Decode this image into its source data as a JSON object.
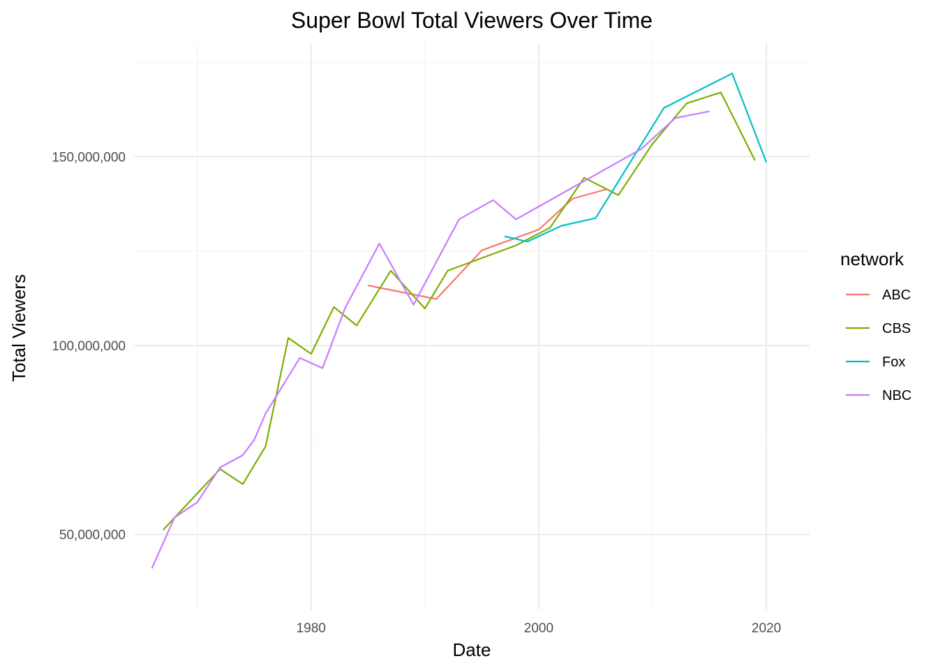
{
  "chart_data": {
    "type": "line",
    "title": "Super Bowl Total Viewers Over Time",
    "xlabel": "Date",
    "ylabel": "Total Viewers",
    "xlim": [
      1964.5,
      2023.8
    ],
    "ylim": [
      30000000,
      180000000
    ],
    "x_ticks": [
      1980,
      2000,
      2020
    ],
    "x_tick_labels": [
      "1980",
      "2000",
      "2020"
    ],
    "x_minor_ticks": [
      1970,
      1990,
      2010
    ],
    "y_ticks": [
      50000000,
      100000000,
      150000000
    ],
    "y_tick_labels": [
      "50,000,000",
      "100,000,000",
      "150,000,000"
    ],
    "y_minor_ticks": [
      75000000,
      125000000,
      175000000
    ],
    "grid": true,
    "legend": {
      "title": "network",
      "position": "right"
    },
    "series": [
      {
        "name": "ABC",
        "color": "#F8766D",
        "points": [
          [
            1985,
            115900000
          ],
          [
            1991,
            112300000
          ],
          [
            1995,
            125200000
          ],
          [
            2000,
            130700000
          ],
          [
            2003,
            138900000
          ],
          [
            2006,
            141400000
          ]
        ]
      },
      {
        "name": "CBS",
        "color": "#7CAE00",
        "points": [
          [
            1967,
            51200000
          ],
          [
            1972,
            67300000
          ],
          [
            1974,
            63300000
          ],
          [
            1976,
            73300000
          ],
          [
            1978,
            102000000
          ],
          [
            1980,
            97800000
          ],
          [
            1982,
            110200000
          ],
          [
            1984,
            105300000
          ],
          [
            1987,
            119800000
          ],
          [
            1990,
            109800000
          ],
          [
            1992,
            119800000
          ],
          [
            1998,
            126500000
          ],
          [
            2001,
            131200000
          ],
          [
            2004,
            144400000
          ],
          [
            2007,
            139800000
          ],
          [
            2010,
            153400000
          ],
          [
            2013,
            164100000
          ],
          [
            2016,
            167000000
          ],
          [
            2019,
            149000000
          ]
        ]
      },
      {
        "name": "Fox",
        "color": "#00BFC4",
        "points": [
          [
            1997,
            128900000
          ],
          [
            1999,
            127500000
          ],
          [
            2002,
            131700000
          ],
          [
            2005,
            133700000
          ],
          [
            2008,
            148300000
          ],
          [
            2011,
            162900000
          ],
          [
            2017,
            172000000
          ],
          [
            2020,
            148500000
          ]
        ]
      },
      {
        "name": "NBC",
        "color": "#C77CFF",
        "points": [
          [
            1966,
            41000000
          ],
          [
            1968,
            54500000
          ],
          [
            1970,
            58500000
          ],
          [
            1972,
            67700000
          ],
          [
            1974,
            71000000
          ],
          [
            1975,
            75000000
          ],
          [
            1976,
            82000000
          ],
          [
            1979,
            96700000
          ],
          [
            1981,
            94000000
          ],
          [
            1983,
            110000000
          ],
          [
            1986,
            127000000
          ],
          [
            1989,
            110800000
          ],
          [
            1993,
            133400000
          ],
          [
            1996,
            138500000
          ],
          [
            1998,
            133400000
          ],
          [
            2009,
            152000000
          ],
          [
            2012,
            160200000
          ],
          [
            2015,
            162000000
          ]
        ]
      }
    ]
  }
}
